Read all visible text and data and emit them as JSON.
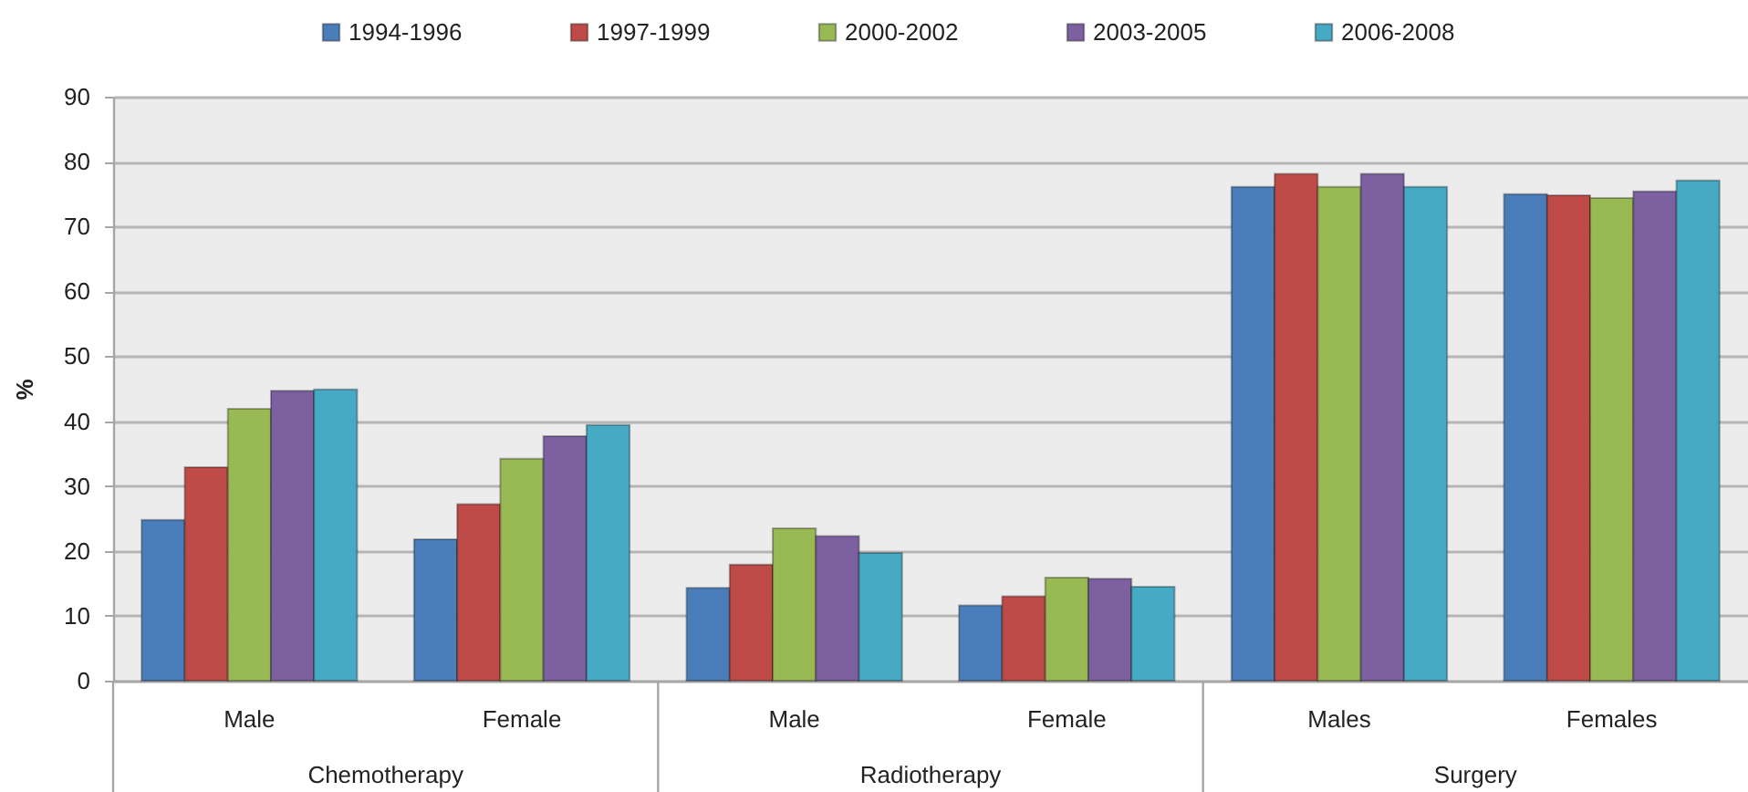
{
  "chart_data": {
    "type": "bar",
    "ylabel": "%",
    "categories": [
      "Male",
      "Female",
      "Male",
      "Female",
      "Males",
      "Females"
    ],
    "series": [
      {
        "name": "1994-1996",
        "color": "#4a7ebb",
        "values": [
          24.8,
          21.8,
          14.3,
          11.6,
          76.1,
          75.0
        ]
      },
      {
        "name": "1997-1999",
        "color": "#be4b48",
        "values": [
          32.9,
          27.2,
          17.9,
          13.0,
          78.1,
          74.8
        ]
      },
      {
        "name": "2000-2002",
        "color": "#98b954",
        "values": [
          41.9,
          34.2,
          23.5,
          15.9,
          76.1,
          74.4
        ]
      },
      {
        "name": "2003-2005",
        "color": "#7d60a0",
        "values": [
          44.7,
          37.7,
          22.3,
          15.7,
          78.1,
          75.4
        ]
      },
      {
        "name": "2006-2008",
        "color": "#46aac5",
        "values": [
          44.9,
          39.4,
          19.7,
          14.5,
          76.1,
          77.1
        ]
      }
    ],
    "ylim": [
      0,
      90
    ],
    "yticks": [
      0,
      10,
      20,
      30,
      40,
      50,
      60,
      70,
      80,
      90
    ],
    "grid": "y",
    "legend": "top",
    "annotations": [
      "Chemotherapy",
      "Radiotherapy",
      "Surgery"
    ]
  }
}
